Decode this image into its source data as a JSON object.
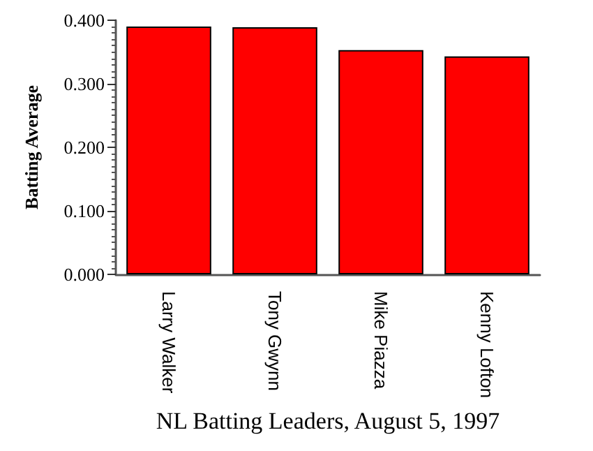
{
  "chart_data": {
    "type": "bar",
    "xlabel": "NL Batting Leaders, August 5, 1997",
    "ylabel": "Batting Average",
    "categories": [
      "Larry Walker",
      "Tony Gwynn",
      "Mike Piazza",
      "Kenny Lofton"
    ],
    "values": [
      0.39,
      0.389,
      0.353,
      0.343
    ],
    "color": "#ff0000",
    "ylim": [
      0,
      0.4
    ],
    "yticks": [
      {
        "value": 0,
        "label": "0.000"
      },
      {
        "value": 0.1,
        "label": "0.100"
      },
      {
        "value": 0.2,
        "label": "0.200"
      },
      {
        "value": 0.3,
        "label": "0.300"
      },
      {
        "value": 0.4,
        "label": "0.400"
      }
    ],
    "grid": false
  }
}
